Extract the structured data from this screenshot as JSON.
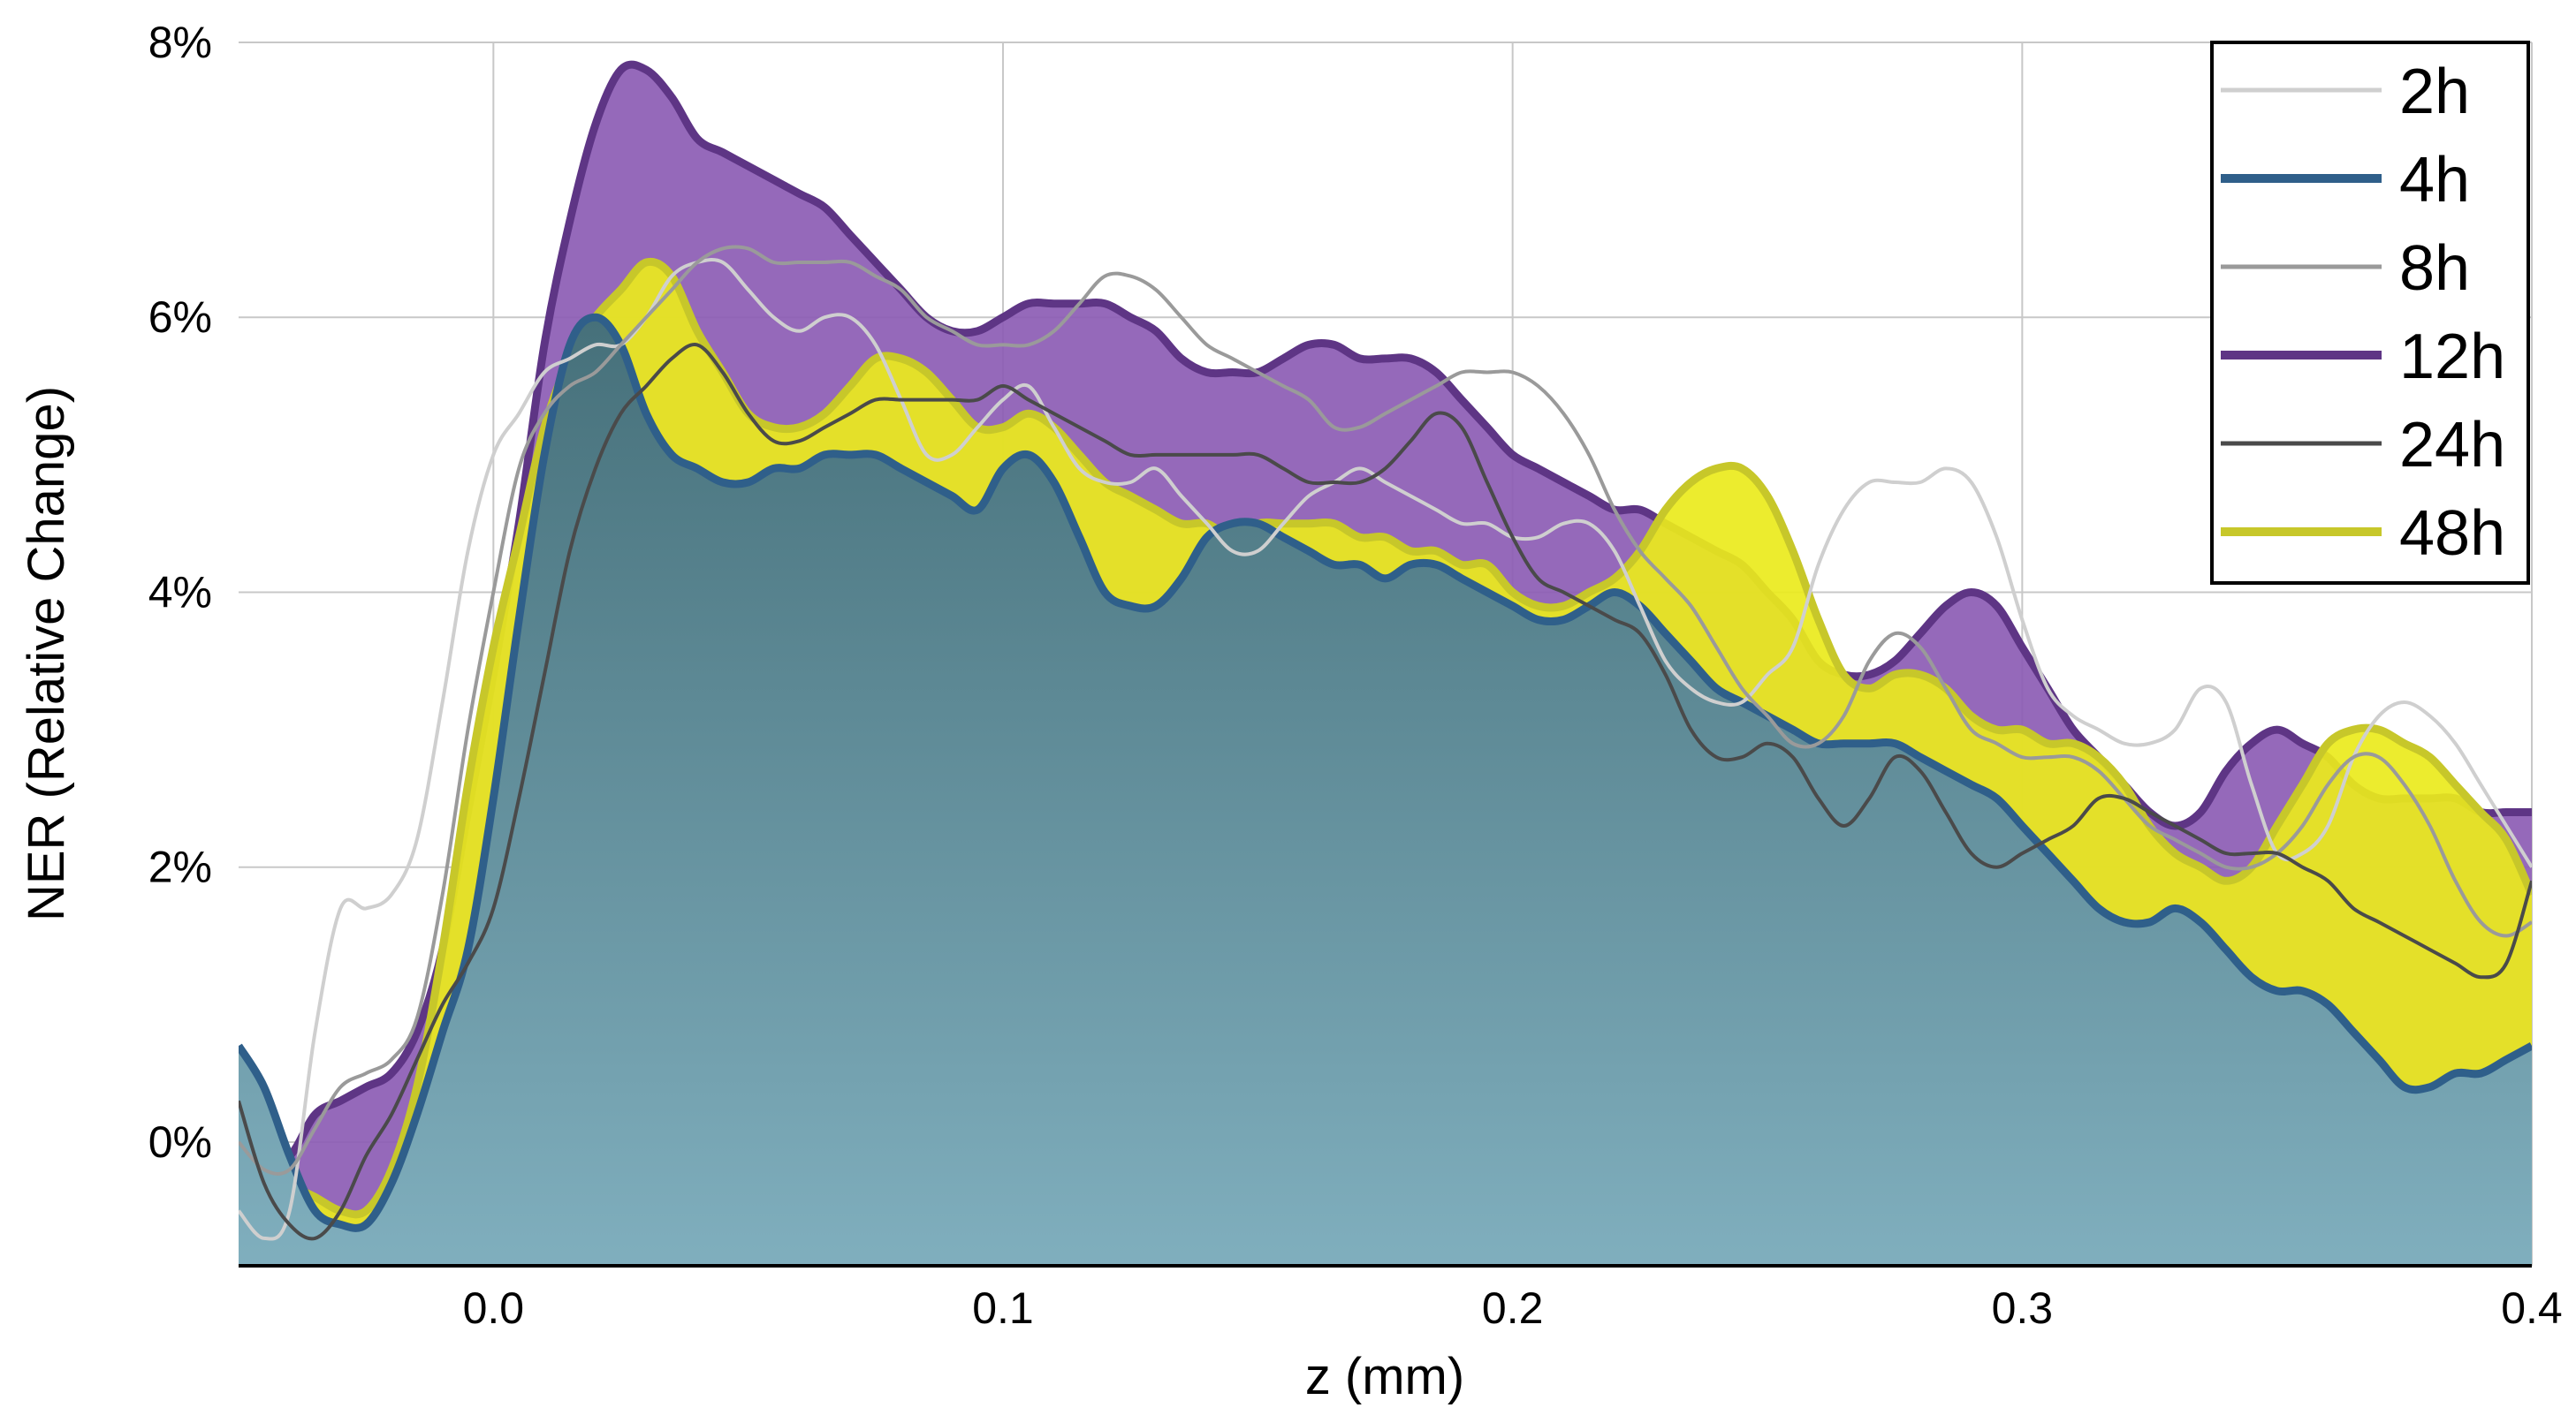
{
  "chart_data": {
    "type": "area",
    "title": "",
    "xlabel": "z (mm)",
    "ylabel": "NER (Relative Change)",
    "xlim": [
      -0.05,
      0.4
    ],
    "ylim": [
      -0.9,
      8.0
    ],
    "x_ticks": [
      0.0,
      0.1,
      0.2,
      0.3,
      0.4
    ],
    "x_tick_labels": [
      "0.0",
      "0.1",
      "0.2",
      "0.3",
      "0.4"
    ],
    "y_ticks": [
      0,
      2,
      4,
      6,
      8
    ],
    "y_tick_labels": [
      "0%",
      "2%",
      "4%",
      "6%",
      "8%"
    ],
    "grid": true,
    "legend_position": "top-right",
    "series": [
      {
        "name": "2h",
        "style": "line",
        "color": "#cfcfcf",
        "x": [
          -0.05,
          -0.045,
          -0.04,
          -0.035,
          -0.03,
          -0.025,
          -0.02,
          -0.015,
          -0.01,
          -0.005,
          0.0,
          0.005,
          0.01,
          0.015,
          0.02,
          0.025,
          0.03,
          0.035,
          0.04,
          0.045,
          0.05,
          0.055,
          0.06,
          0.065,
          0.07,
          0.075,
          0.08,
          0.085,
          0.09,
          0.095,
          0.1,
          0.105,
          0.11,
          0.115,
          0.12,
          0.125,
          0.13,
          0.135,
          0.14,
          0.145,
          0.15,
          0.155,
          0.16,
          0.165,
          0.17,
          0.175,
          0.18,
          0.185,
          0.19,
          0.195,
          0.2,
          0.205,
          0.21,
          0.215,
          0.22,
          0.225,
          0.23,
          0.235,
          0.24,
          0.245,
          0.25,
          0.255,
          0.26,
          0.265,
          0.27,
          0.275,
          0.28,
          0.285,
          0.29,
          0.295,
          0.3,
          0.305,
          0.31,
          0.315,
          0.32,
          0.325,
          0.33,
          0.335,
          0.34,
          0.345,
          0.35,
          0.355,
          0.36,
          0.365,
          0.37,
          0.375,
          0.38,
          0.385,
          0.39,
          0.395,
          0.4
        ],
        "y": [
          -0.5,
          -0.7,
          -0.5,
          0.8,
          1.7,
          1.7,
          1.8,
          2.2,
          3.2,
          4.3,
          5.0,
          5.3,
          5.6,
          5.7,
          5.8,
          5.8,
          6.0,
          6.3,
          6.4,
          6.4,
          6.2,
          6.0,
          5.9,
          6.0,
          6.0,
          5.8,
          5.4,
          5.0,
          5.0,
          5.2,
          5.4,
          5.5,
          5.2,
          4.9,
          4.8,
          4.8,
          4.9,
          4.7,
          4.5,
          4.3,
          4.3,
          4.5,
          4.7,
          4.8,
          4.9,
          4.8,
          4.7,
          4.6,
          4.5,
          4.5,
          4.4,
          4.4,
          4.5,
          4.5,
          4.3,
          3.9,
          3.5,
          3.3,
          3.2,
          3.2,
          3.4,
          3.6,
          4.2,
          4.6,
          4.8,
          4.8,
          4.8,
          4.9,
          4.8,
          4.4,
          3.8,
          3.3,
          3.1,
          3.0,
          2.9,
          2.9,
          3.0,
          3.3,
          3.2,
          2.6,
          2.1,
          2.1,
          2.3,
          2.8,
          3.1,
          3.2,
          3.1,
          2.9,
          2.6,
          2.3,
          2.0
        ]
      },
      {
        "name": "4h",
        "style": "area",
        "color": "#2f5f8a",
        "fill_top": "#46707a",
        "fill_bottom": "#80afbe",
        "x": [
          -0.05,
          -0.045,
          -0.04,
          -0.035,
          -0.03,
          -0.025,
          -0.02,
          -0.015,
          -0.01,
          -0.005,
          0.0,
          0.005,
          0.01,
          0.015,
          0.02,
          0.025,
          0.03,
          0.035,
          0.04,
          0.045,
          0.05,
          0.055,
          0.06,
          0.065,
          0.07,
          0.075,
          0.08,
          0.085,
          0.09,
          0.095,
          0.1,
          0.105,
          0.11,
          0.115,
          0.12,
          0.125,
          0.13,
          0.135,
          0.14,
          0.145,
          0.15,
          0.155,
          0.16,
          0.165,
          0.17,
          0.175,
          0.18,
          0.185,
          0.19,
          0.195,
          0.2,
          0.205,
          0.21,
          0.215,
          0.22,
          0.225,
          0.23,
          0.235,
          0.24,
          0.245,
          0.25,
          0.255,
          0.26,
          0.265,
          0.27,
          0.275,
          0.28,
          0.285,
          0.29,
          0.295,
          0.3,
          0.305,
          0.31,
          0.315,
          0.32,
          0.325,
          0.33,
          0.335,
          0.34,
          0.345,
          0.35,
          0.355,
          0.36,
          0.365,
          0.37,
          0.375,
          0.38,
          0.385,
          0.39,
          0.395,
          0.4
        ],
        "y": [
          0.7,
          0.4,
          -0.1,
          -0.5,
          -0.6,
          -0.6,
          -0.3,
          0.2,
          0.8,
          1.4,
          2.5,
          3.8,
          5.0,
          5.8,
          6.0,
          5.8,
          5.3,
          5.0,
          4.9,
          4.8,
          4.8,
          4.9,
          4.9,
          5.0,
          5.0,
          5.0,
          4.9,
          4.8,
          4.7,
          4.6,
          4.9,
          5.0,
          4.8,
          4.4,
          4.0,
          3.9,
          3.9,
          4.1,
          4.4,
          4.5,
          4.5,
          4.4,
          4.3,
          4.2,
          4.2,
          4.1,
          4.2,
          4.2,
          4.1,
          4.0,
          3.9,
          3.8,
          3.8,
          3.9,
          4.0,
          3.9,
          3.7,
          3.5,
          3.3,
          3.2,
          3.1,
          3.0,
          2.9,
          2.9,
          2.9,
          2.9,
          2.8,
          2.7,
          2.6,
          2.5,
          2.3,
          2.1,
          1.9,
          1.7,
          1.6,
          1.6,
          1.7,
          1.6,
          1.4,
          1.2,
          1.1,
          1.1,
          1.0,
          0.8,
          0.6,
          0.4,
          0.4,
          0.5,
          0.5,
          0.6,
          0.7
        ]
      },
      {
        "name": "8h",
        "style": "line",
        "color": "#9a9a9a",
        "x": [
          -0.05,
          -0.045,
          -0.04,
          -0.035,
          -0.03,
          -0.025,
          -0.02,
          -0.015,
          -0.01,
          -0.005,
          0.0,
          0.005,
          0.01,
          0.015,
          0.02,
          0.025,
          0.03,
          0.035,
          0.04,
          0.045,
          0.05,
          0.055,
          0.06,
          0.065,
          0.07,
          0.075,
          0.08,
          0.085,
          0.09,
          0.095,
          0.1,
          0.105,
          0.11,
          0.115,
          0.12,
          0.125,
          0.13,
          0.135,
          0.14,
          0.145,
          0.15,
          0.155,
          0.16,
          0.165,
          0.17,
          0.175,
          0.18,
          0.185,
          0.19,
          0.195,
          0.2,
          0.205,
          0.21,
          0.215,
          0.22,
          0.225,
          0.23,
          0.235,
          0.24,
          0.245,
          0.25,
          0.255,
          0.26,
          0.265,
          0.27,
          0.275,
          0.28,
          0.285,
          0.29,
          0.295,
          0.3,
          0.305,
          0.31,
          0.315,
          0.32,
          0.325,
          0.33,
          0.335,
          0.34,
          0.345,
          0.35,
          0.355,
          0.36,
          0.365,
          0.37,
          0.375,
          0.38,
          0.385,
          0.39,
          0.395,
          0.4
        ],
        "y": [
          0.0,
          -0.2,
          -0.2,
          0.1,
          0.4,
          0.5,
          0.6,
          0.9,
          1.8,
          3.0,
          4.0,
          4.9,
          5.3,
          5.5,
          5.6,
          5.8,
          6.0,
          6.2,
          6.4,
          6.5,
          6.5,
          6.4,
          6.4,
          6.4,
          6.4,
          6.3,
          6.2,
          6.0,
          5.9,
          5.8,
          5.8,
          5.8,
          5.9,
          6.1,
          6.3,
          6.3,
          6.2,
          6.0,
          5.8,
          5.7,
          5.6,
          5.5,
          5.4,
          5.2,
          5.2,
          5.3,
          5.4,
          5.5,
          5.6,
          5.6,
          5.6,
          5.5,
          5.3,
          5.0,
          4.6,
          4.3,
          4.1,
          3.9,
          3.6,
          3.3,
          3.1,
          2.9,
          2.9,
          3.1,
          3.5,
          3.7,
          3.6,
          3.3,
          3.0,
          2.9,
          2.8,
          2.8,
          2.8,
          2.7,
          2.5,
          2.3,
          2.2,
          2.1,
          2.0,
          2.0,
          2.1,
          2.3,
          2.6,
          2.8,
          2.8,
          2.6,
          2.3,
          1.9,
          1.6,
          1.5,
          1.6
        ]
      },
      {
        "name": "12h",
        "style": "area",
        "color": "#5e3585",
        "fill": "#8c5cb4",
        "x": [
          -0.05,
          -0.045,
          -0.04,
          -0.035,
          -0.03,
          -0.025,
          -0.02,
          -0.015,
          -0.01,
          -0.005,
          0.0,
          0.005,
          0.01,
          0.015,
          0.02,
          0.025,
          0.03,
          0.035,
          0.04,
          0.045,
          0.05,
          0.055,
          0.06,
          0.065,
          0.07,
          0.075,
          0.08,
          0.085,
          0.09,
          0.095,
          0.1,
          0.105,
          0.11,
          0.115,
          0.12,
          0.125,
          0.13,
          0.135,
          0.14,
          0.145,
          0.15,
          0.155,
          0.16,
          0.165,
          0.17,
          0.175,
          0.18,
          0.185,
          0.19,
          0.195,
          0.2,
          0.205,
          0.21,
          0.215,
          0.22,
          0.225,
          0.23,
          0.235,
          0.24,
          0.245,
          0.25,
          0.255,
          0.26,
          0.265,
          0.27,
          0.275,
          0.28,
          0.285,
          0.29,
          0.295,
          0.3,
          0.305,
          0.31,
          0.315,
          0.32,
          0.325,
          0.33,
          0.335,
          0.34,
          0.345,
          0.35,
          0.355,
          0.36,
          0.365,
          0.37,
          0.375,
          0.38,
          0.385,
          0.39,
          0.395,
          0.4
        ],
        "y": [
          -0.1,
          -0.1,
          -0.1,
          0.2,
          0.3,
          0.4,
          0.5,
          0.8,
          1.4,
          2.4,
          3.4,
          4.5,
          5.8,
          6.7,
          7.4,
          7.8,
          7.8,
          7.6,
          7.3,
          7.2,
          7.1,
          7.0,
          6.9,
          6.8,
          6.6,
          6.4,
          6.2,
          6.0,
          5.9,
          5.9,
          6.0,
          6.1,
          6.1,
          6.1,
          6.1,
          6.0,
          5.9,
          5.7,
          5.6,
          5.6,
          5.6,
          5.7,
          5.8,
          5.8,
          5.7,
          5.7,
          5.7,
          5.6,
          5.4,
          5.2,
          5.0,
          4.9,
          4.8,
          4.7,
          4.6,
          4.6,
          4.5,
          4.4,
          4.3,
          4.2,
          4.0,
          3.8,
          3.5,
          3.4,
          3.4,
          3.5,
          3.7,
          3.9,
          4.0,
          3.9,
          3.6,
          3.3,
          3.0,
          2.8,
          2.6,
          2.4,
          2.3,
          2.4,
          2.7,
          2.9,
          3.0,
          2.9,
          2.8,
          2.6,
          2.5,
          2.5,
          2.5,
          2.5,
          2.4,
          2.4,
          2.4
        ]
      },
      {
        "name": "24h",
        "style": "line",
        "color": "#4a4a4a",
        "x": [
          -0.05,
          -0.045,
          -0.04,
          -0.035,
          -0.03,
          -0.025,
          -0.02,
          -0.015,
          -0.01,
          -0.005,
          0.0,
          0.005,
          0.01,
          0.015,
          0.02,
          0.025,
          0.03,
          0.035,
          0.04,
          0.045,
          0.05,
          0.055,
          0.06,
          0.065,
          0.07,
          0.075,
          0.08,
          0.085,
          0.09,
          0.095,
          0.1,
          0.105,
          0.11,
          0.115,
          0.12,
          0.125,
          0.13,
          0.135,
          0.14,
          0.145,
          0.15,
          0.155,
          0.16,
          0.165,
          0.17,
          0.175,
          0.18,
          0.185,
          0.19,
          0.195,
          0.2,
          0.205,
          0.21,
          0.215,
          0.22,
          0.225,
          0.23,
          0.235,
          0.24,
          0.245,
          0.25,
          0.255,
          0.26,
          0.265,
          0.27,
          0.275,
          0.28,
          0.285,
          0.29,
          0.295,
          0.3,
          0.305,
          0.31,
          0.315,
          0.32,
          0.325,
          0.33,
          0.335,
          0.34,
          0.345,
          0.35,
          0.355,
          0.36,
          0.365,
          0.37,
          0.375,
          0.38,
          0.385,
          0.39,
          0.395,
          0.4
        ],
        "y": [
          0.3,
          -0.3,
          -0.6,
          -0.7,
          -0.5,
          -0.1,
          0.2,
          0.6,
          1.0,
          1.3,
          1.7,
          2.5,
          3.4,
          4.3,
          4.9,
          5.3,
          5.5,
          5.7,
          5.8,
          5.6,
          5.3,
          5.1,
          5.1,
          5.2,
          5.3,
          5.4,
          5.4,
          5.4,
          5.4,
          5.4,
          5.5,
          5.4,
          5.3,
          5.2,
          5.1,
          5.0,
          5.0,
          5.0,
          5.0,
          5.0,
          5.0,
          4.9,
          4.8,
          4.8,
          4.8,
          4.9,
          5.1,
          5.3,
          5.2,
          4.8,
          4.4,
          4.1,
          4.0,
          3.9,
          3.8,
          3.7,
          3.4,
          3.0,
          2.8,
          2.8,
          2.9,
          2.8,
          2.5,
          2.3,
          2.5,
          2.8,
          2.7,
          2.4,
          2.1,
          2.0,
          2.1,
          2.2,
          2.3,
          2.5,
          2.5,
          2.4,
          2.3,
          2.2,
          2.1,
          2.1,
          2.1,
          2.0,
          1.9,
          1.7,
          1.6,
          1.5,
          1.4,
          1.3,
          1.2,
          1.3,
          1.9
        ]
      },
      {
        "name": "48h",
        "style": "area",
        "color": "#c7c72a",
        "fill": "#eaea1c",
        "x": [
          -0.05,
          -0.045,
          -0.04,
          -0.035,
          -0.03,
          -0.025,
          -0.02,
          -0.015,
          -0.01,
          -0.005,
          0.0,
          0.005,
          0.01,
          0.015,
          0.02,
          0.025,
          0.03,
          0.035,
          0.04,
          0.045,
          0.05,
          0.055,
          0.06,
          0.065,
          0.07,
          0.075,
          0.08,
          0.085,
          0.09,
          0.095,
          0.1,
          0.105,
          0.11,
          0.115,
          0.12,
          0.125,
          0.13,
          0.135,
          0.14,
          0.145,
          0.15,
          0.155,
          0.16,
          0.165,
          0.17,
          0.175,
          0.18,
          0.185,
          0.19,
          0.195,
          0.2,
          0.205,
          0.21,
          0.215,
          0.22,
          0.225,
          0.23,
          0.235,
          0.24,
          0.245,
          0.25,
          0.255,
          0.26,
          0.265,
          0.27,
          0.275,
          0.28,
          0.285,
          0.29,
          0.295,
          0.3,
          0.305,
          0.31,
          0.315,
          0.32,
          0.325,
          0.33,
          0.335,
          0.34,
          0.345,
          0.35,
          0.355,
          0.36,
          0.365,
          0.37,
          0.375,
          0.38,
          0.385,
          0.39,
          0.395,
          0.4
        ],
        "y": [
          0.2,
          -0.1,
          -0.3,
          -0.4,
          -0.5,
          -0.5,
          -0.2,
          0.4,
          1.4,
          2.6,
          3.6,
          4.4,
          5.2,
          5.7,
          6.0,
          6.2,
          6.4,
          6.3,
          5.9,
          5.6,
          5.3,
          5.2,
          5.2,
          5.3,
          5.5,
          5.7,
          5.7,
          5.6,
          5.4,
          5.2,
          5.2,
          5.3,
          5.2,
          5.0,
          4.8,
          4.7,
          4.6,
          4.5,
          4.5,
          4.4,
          4.5,
          4.5,
          4.5,
          4.5,
          4.4,
          4.4,
          4.3,
          4.3,
          4.2,
          4.2,
          4.0,
          3.9,
          3.9,
          4.0,
          4.1,
          4.3,
          4.6,
          4.8,
          4.9,
          4.9,
          4.7,
          4.3,
          3.8,
          3.4,
          3.3,
          3.4,
          3.4,
          3.3,
          3.1,
          3.0,
          3.0,
          2.9,
          2.9,
          2.8,
          2.6,
          2.3,
          2.1,
          2.0,
          1.9,
          2.0,
          2.3,
          2.6,
          2.9,
          3.0,
          3.0,
          2.9,
          2.8,
          2.6,
          2.4,
          2.2,
          1.8
        ]
      }
    ]
  }
}
